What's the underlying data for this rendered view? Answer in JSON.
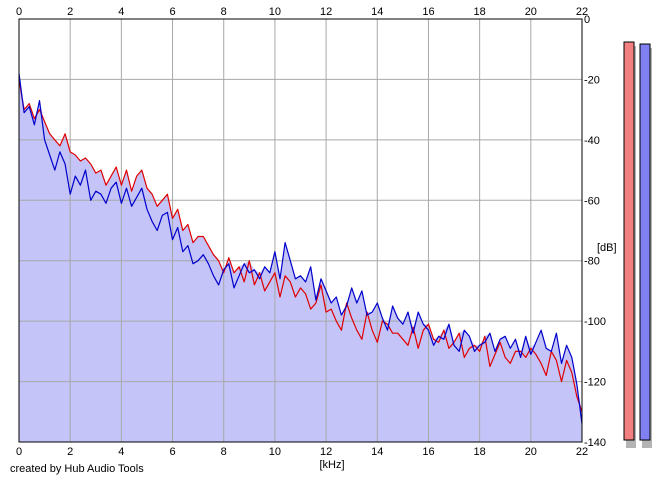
{
  "chart_data": {
    "type": "area",
    "xlabel": "[kHz]",
    "ylabel": "[dB]",
    "xlim": [
      0,
      22
    ],
    "ylim": [
      -140,
      0
    ],
    "x_ticks": [
      0,
      2,
      4,
      6,
      8,
      10,
      12,
      14,
      16,
      18,
      20,
      22
    ],
    "y_ticks": [
      0,
      -20,
      -40,
      -60,
      -80,
      -100,
      -120,
      -140
    ],
    "grid": true,
    "series": [
      {
        "color": "#e00000",
        "x": [
          0.0,
          0.2,
          0.4,
          0.6,
          0.8,
          1.0,
          1.2,
          1.4,
          1.6,
          1.8,
          2.0,
          2.2,
          2.4,
          2.6,
          2.8,
          3.0,
          3.2,
          3.4,
          3.6,
          3.8,
          4.0,
          4.2,
          4.4,
          4.6,
          4.8,
          5.0,
          5.2,
          5.4,
          5.6,
          5.8,
          6.0,
          6.2,
          6.4,
          6.6,
          6.8,
          7.0,
          7.2,
          7.4,
          7.6,
          7.8,
          8.0,
          8.2,
          8.4,
          8.6,
          8.8,
          9.0,
          9.2,
          9.4,
          9.6,
          9.8,
          10.0,
          10.2,
          10.4,
          10.6,
          10.8,
          11.0,
          11.2,
          11.4,
          11.6,
          11.8,
          12.0,
          12.2,
          12.4,
          12.6,
          12.8,
          13.0,
          13.2,
          13.4,
          13.6,
          13.8,
          14.0,
          14.2,
          14.4,
          14.6,
          14.8,
          15.0,
          15.2,
          15.4,
          15.6,
          15.8,
          16.0,
          16.2,
          16.4,
          16.6,
          16.8,
          17.0,
          17.2,
          17.4,
          17.6,
          17.8,
          18.0,
          18.2,
          18.4,
          18.6,
          18.8,
          19.0,
          19.2,
          19.4,
          19.6,
          19.8,
          20.0,
          20.2,
          20.4,
          20.6,
          20.8,
          21.0,
          21.2,
          21.4,
          21.6,
          21.8,
          22.0
        ],
        "values": [
          -20,
          -30,
          -28,
          -33,
          -30,
          -34,
          -38,
          -40,
          -42,
          -38,
          -44,
          -45,
          -47,
          -46,
          -48,
          -51,
          -50,
          -55,
          -52,
          -49,
          -55,
          -50,
          -57,
          -52,
          -50,
          -56,
          -58,
          -62,
          -60,
          -58,
          -66,
          -63,
          -70,
          -68,
          -74,
          -72,
          -72,
          -75,
          -78,
          -80,
          -84,
          -79,
          -84,
          -82,
          -87,
          -80,
          -88,
          -84,
          -90,
          -87,
          -84,
          -92,
          -85,
          -87,
          -92,
          -89,
          -91,
          -96,
          -94,
          -88,
          -97,
          -96,
          -100,
          -103,
          -94,
          -99,
          -103,
          -106,
          -97,
          -103,
          -107,
          -100,
          -101,
          -104,
          -104,
          -106,
          -108,
          -102,
          -109,
          -103,
          -101,
          -106,
          -107,
          -103,
          -109,
          -107,
          -104,
          -112,
          -109,
          -108,
          -110,
          -105,
          -115,
          -111,
          -107,
          -112,
          -114,
          -110,
          -110,
          -112,
          -109,
          -111,
          -114,
          -118,
          -110,
          -113,
          -120,
          -113,
          -117,
          -125,
          -130
        ]
      },
      {
        "color": "#0000cc",
        "x": [
          0.0,
          0.2,
          0.4,
          0.6,
          0.8,
          1.0,
          1.2,
          1.4,
          1.6,
          1.8,
          2.0,
          2.2,
          2.4,
          2.6,
          2.8,
          3.0,
          3.2,
          3.4,
          3.6,
          3.8,
          4.0,
          4.2,
          4.4,
          4.6,
          4.8,
          5.0,
          5.2,
          5.4,
          5.6,
          5.8,
          6.0,
          6.2,
          6.4,
          6.6,
          6.8,
          7.0,
          7.2,
          7.4,
          7.6,
          7.8,
          8.0,
          8.2,
          8.4,
          8.6,
          8.8,
          9.0,
          9.2,
          9.4,
          9.6,
          9.8,
          10.0,
          10.2,
          10.4,
          10.6,
          10.8,
          11.0,
          11.2,
          11.4,
          11.6,
          11.8,
          12.0,
          12.2,
          12.4,
          12.6,
          12.8,
          13.0,
          13.2,
          13.4,
          13.6,
          13.8,
          14.0,
          14.2,
          14.4,
          14.6,
          14.8,
          15.0,
          15.2,
          15.4,
          15.6,
          15.8,
          16.0,
          16.2,
          16.4,
          16.6,
          16.8,
          17.0,
          17.2,
          17.4,
          17.6,
          17.8,
          18.0,
          18.2,
          18.4,
          18.6,
          18.8,
          19.0,
          19.2,
          19.4,
          19.6,
          19.8,
          20.0,
          20.2,
          20.4,
          20.6,
          20.8,
          21.0,
          21.2,
          21.4,
          21.6,
          21.8,
          22.0
        ],
        "values": [
          -18,
          -31,
          -29,
          -35,
          -27,
          -40,
          -45,
          -50,
          -44,
          -48,
          -58,
          -52,
          -55,
          -50,
          -60,
          -57,
          -58,
          -61,
          -56,
          -54,
          -61,
          -56,
          -62,
          -59,
          -56,
          -63,
          -67,
          -70,
          -65,
          -64,
          -73,
          -69,
          -77,
          -75,
          -81,
          -80,
          -78,
          -81,
          -85,
          -88,
          -83,
          -81,
          -89,
          -85,
          -81,
          -84,
          -83,
          -86,
          -82,
          -84,
          -77,
          -86,
          -74,
          -80,
          -86,
          -85,
          -87,
          -82,
          -93,
          -86,
          -90,
          -94,
          -92,
          -98,
          -95,
          -89,
          -94,
          -90,
          -98,
          -97,
          -94,
          -99,
          -103,
          -95,
          -99,
          -101,
          -97,
          -104,
          -97,
          -101,
          -103,
          -108,
          -105,
          -106,
          -101,
          -108,
          -110,
          -103,
          -105,
          -110,
          -108,
          -107,
          -104,
          -110,
          -106,
          -105,
          -109,
          -106,
          -112,
          -105,
          -111,
          -107,
          -103,
          -109,
          -110,
          -104,
          -114,
          -108,
          -112,
          -121,
          -134
        ]
      }
    ],
    "meters": [
      {
        "color": "#f28080"
      },
      {
        "color": "#8080f2"
      }
    ],
    "colors": {
      "fill": "#c4c4f8",
      "grid": "#a8a8a8",
      "frame": "#000000"
    }
  },
  "footer": {
    "credit": "created by Hub Audio Tools"
  }
}
